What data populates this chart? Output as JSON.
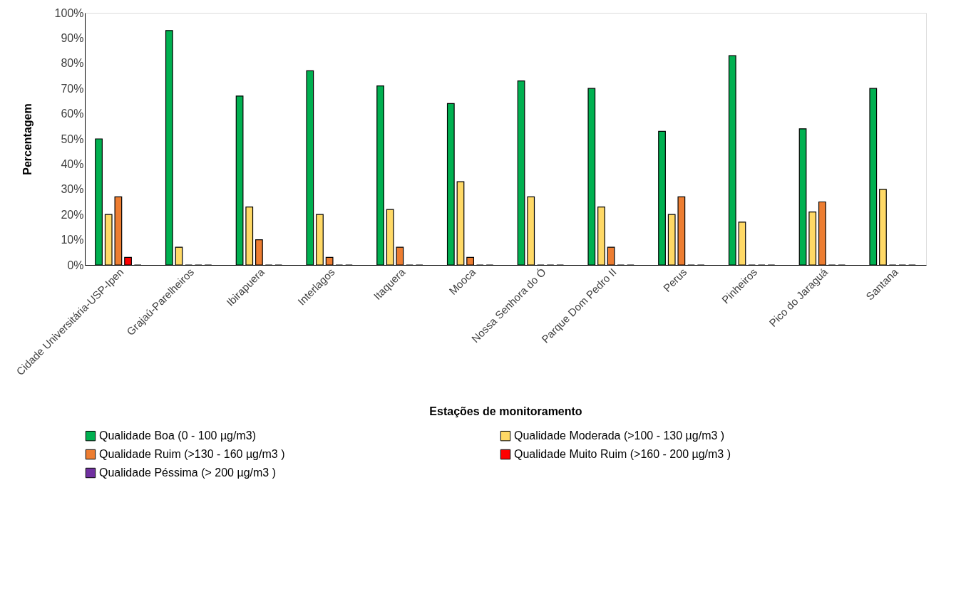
{
  "chart_data": {
    "type": "bar",
    "xlabel": "Estações de monitoramento",
    "ylabel": "Percentagem",
    "categories": [
      "Cidade Universitária-USP-Ipen",
      "Grajaú-Parelheiros",
      "Ibirapuera",
      "Interlagos",
      "Itaquera",
      "Mooca",
      "Nossa Senhora do Ó",
      "Parque Dom Pedro II",
      "Perus",
      "Pinheiros",
      "Pico do Jaraguá",
      "Santana"
    ],
    "series": [
      {
        "name": "Qualidade Boa  (0 - 100 µg/m3)",
        "color": "#00b050",
        "values": [
          50,
          93,
          67,
          77,
          71,
          64,
          73,
          70,
          53,
          83,
          54,
          70
        ]
      },
      {
        "name": "Qualidade Moderada (>100 - 130 µg/m3 )",
        "color": "#ffd966",
        "values": [
          20,
          7,
          23,
          20,
          22,
          33,
          27,
          23,
          20,
          17,
          21,
          30
        ]
      },
      {
        "name": "Qualidade Ruim (>130 - 160 µg/m3 )",
        "color": "#ed7d31",
        "values": [
          27,
          0,
          10,
          3,
          7,
          3,
          0,
          7,
          27,
          0,
          25,
          0
        ]
      },
      {
        "name": "Qualidade Muito Ruim (>160 - 200 µg/m3 )",
        "color": "#ff0000",
        "values": [
          3,
          0,
          0,
          0,
          0,
          0,
          0,
          0,
          0,
          0,
          0,
          0
        ]
      },
      {
        "name": "Qualidade Péssima  (> 200 µg/m3 )",
        "color": "#7030a0",
        "values": [
          0,
          0,
          0,
          0,
          0,
          0,
          0,
          0,
          0,
          0,
          0,
          0
        ]
      }
    ],
    "ylim": [
      0,
      100
    ],
    "yticks": [
      {
        "value": 0,
        "label": "0%"
      },
      {
        "value": 10,
        "label": "10%"
      },
      {
        "value": 20,
        "label": "20%"
      },
      {
        "value": 30,
        "label": "30%"
      },
      {
        "value": 40,
        "label": "40%"
      },
      {
        "value": 50,
        "label": "50%"
      },
      {
        "value": 60,
        "label": "60%"
      },
      {
        "value": 70,
        "label": "70%"
      },
      {
        "value": 80,
        "label": "80%"
      },
      {
        "value": 90,
        "label": "90%"
      },
      {
        "value": 100,
        "label": "100%"
      }
    ],
    "grid": false,
    "legend": "bottom"
  }
}
